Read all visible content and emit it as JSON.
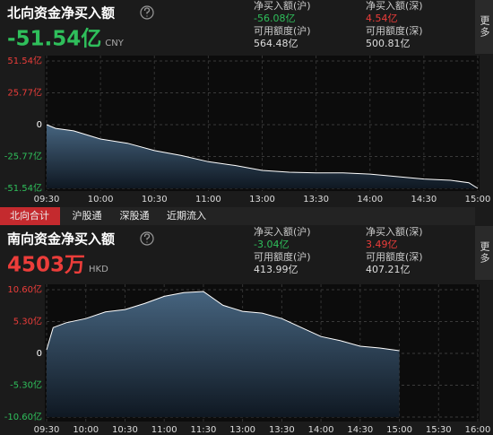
{
  "panels": [
    {
      "title": "北向资金净买入额",
      "value": "-51.54亿",
      "currency": "CNY",
      "stats": [
        {
          "label": "净买入额(沪)",
          "value": "-56.08亿"
        },
        {
          "label": "净买入额(深)",
          "value": "4.54亿"
        },
        {
          "label": "可用额度(沪)",
          "value": "564.48亿"
        },
        {
          "label": "可用额度(深)",
          "value": "500.81亿"
        }
      ],
      "more": "更多"
    },
    {
      "title": "南向资金净买入额",
      "value": "4503万",
      "currency": "HKD",
      "stats": [
        {
          "label": "净买入额(沪)",
          "value": "-3.04亿"
        },
        {
          "label": "净买入额(深)",
          "value": "3.49亿"
        },
        {
          "label": "可用额度(沪)",
          "value": "413.99亿"
        },
        {
          "label": "可用额度(深)",
          "value": "407.21亿"
        }
      ],
      "more": "更多"
    }
  ],
  "tabs": [
    "北向合计",
    "沪股通",
    "深股通",
    "近期流入"
  ],
  "chart_data": [
    {
      "type": "line",
      "color": "#ffffff",
      "x": [
        "09:30",
        "09:35",
        "09:45",
        "10:00",
        "10:15",
        "10:30",
        "10:45",
        "11:00",
        "11:15",
        "13:00",
        "13:15",
        "13:30",
        "13:45",
        "14:00",
        "14:15",
        "14:30",
        "14:45",
        "14:55",
        "15:00"
      ],
      "values": [
        0,
        -3,
        -5,
        -11.6,
        -15,
        -21,
        -25,
        -30,
        -33,
        -37,
        -38.5,
        -39,
        -39,
        -40,
        -42,
        -44,
        -45,
        -47,
        -51.54
      ],
      "ylim": [
        -51.54,
        51.54
      ],
      "yticks": [
        {
          "value": 51.54,
          "label": "51.54亿"
        },
        {
          "value": 25.77,
          "label": "25.77亿"
        },
        0,
        {
          "value": -25.77,
          "label": "-25.77亿"
        },
        {
          "value": -51.54,
          "label": "-51.54亿"
        }
      ],
      "xticks": [
        "09:30",
        "10:00",
        "10:30",
        "11:00",
        "13:00",
        "13:30",
        "14:00",
        "14:30",
        "15:00"
      ]
    },
    {
      "type": "line",
      "color": "#ffffff",
      "x": [
        "09:30",
        "09:35",
        "09:45",
        "10:00",
        "10:15",
        "10:30",
        "10:45",
        "11:00",
        "11:15",
        "11:30",
        "11:45",
        "12:00",
        "13:15",
        "13:30",
        "13:45",
        "14:00",
        "14:15",
        "14:30",
        "14:45",
        "15:00"
      ],
      "values": [
        0.6,
        4.3,
        5.1,
        5.8,
        6.9,
        7.3,
        8.3,
        9.5,
        10.1,
        10.3,
        8.0,
        7.0,
        6.7,
        5.8,
        4.3,
        2.8,
        2.1,
        1.2,
        0.9,
        0.45
      ],
      "ylim": [
        -10.6,
        10.6
      ],
      "yticks": [
        {
          "value": 10.6,
          "label": "10.60亿"
        },
        {
          "value": 5.3,
          "label": "5.30亿"
        },
        0,
        {
          "value": -5.3,
          "label": "-5.30亿"
        },
        {
          "value": -10.6,
          "label": "-10.60亿"
        }
      ],
      "xticks": [
        "09:30",
        "10:00",
        "10:30",
        "11:00",
        "11:30",
        "13:00",
        "13:30",
        "14:00",
        "14:30",
        "15:00",
        "15:30",
        "16:00"
      ]
    }
  ]
}
